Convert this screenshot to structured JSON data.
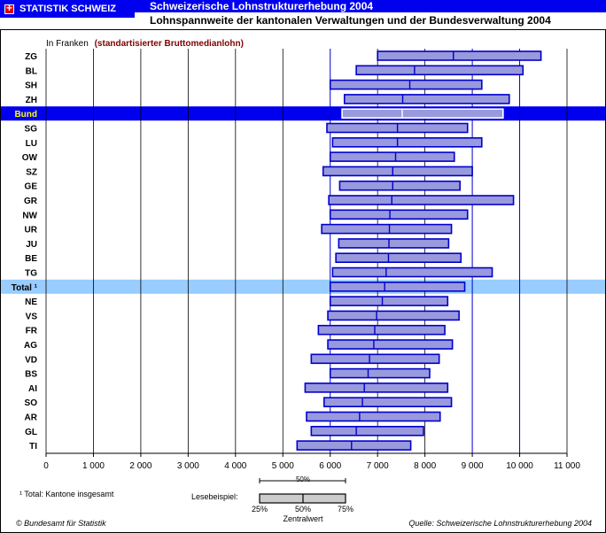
{
  "header": {
    "brand": "STATISTIK SCHWEIZ",
    "title": "Schweizerische Lohnstrukturerhebung 2004",
    "subtitle": "Lohnspannweite der kantonalen Verwaltungen und der Bundesverwaltung 2004"
  },
  "footer": {
    "footnote": "¹ Total: Kantone insgesamt",
    "copyright": "© Bundesamt für Statistik",
    "source": "Quelle: Schweizerische Lohnstrukturerhebung 2004"
  },
  "colors": {
    "header_blue": "#0000ee",
    "bund_band": "#0000ee",
    "bund_label": "#ffff00",
    "total_band": "#99ccff",
    "box_fill": "#9999dd",
    "box_stroke": "#0000cc",
    "axis_note": "#800000"
  },
  "chart_data": {
    "type": "box",
    "orientation": "horizontal",
    "title": "",
    "xlabel": "",
    "ylabel": "",
    "unit_note_prefix": "In Franken",
    "unit_note_detail": "(standartisierter Bruttomedianlohn)",
    "xlim": [
      0,
      11000
    ],
    "xticks": [
      0,
      1000,
      2000,
      3000,
      4000,
      5000,
      6000,
      7000,
      8000,
      9000,
      10000,
      11000
    ],
    "xtick_labels": [
      "0",
      "1 000",
      "2 000",
      "3 000",
      "4 000",
      "5 000",
      "6 000",
      "7 000",
      "8 000",
      "9 000",
      "10 000",
      "11 000"
    ],
    "grid": "vertical",
    "categories": [
      "ZG",
      "BL",
      "SH",
      "ZH",
      "Bund",
      "SG",
      "LU",
      "OW",
      "SZ",
      "GE",
      "GR",
      "NW",
      "UR",
      "JU",
      "BE",
      "TG",
      "Total ¹",
      "NE",
      "VS",
      "FR",
      "AG",
      "VD",
      "BS",
      "AI",
      "SO",
      "AR",
      "GL",
      "TI"
    ],
    "highlight": {
      "Bund": "bund",
      "Total ¹": "total"
    },
    "q1": [
      7000,
      6550,
      6000,
      6300,
      6250,
      5930,
      6050,
      6000,
      5850,
      6200,
      5970,
      6000,
      5820,
      6180,
      6120,
      6050,
      6000,
      6000,
      5950,
      5750,
      5950,
      5600,
      6000,
      5470,
      5870,
      5500,
      5600,
      5300
    ],
    "median": [
      8600,
      7780,
      7680,
      7530,
      7520,
      7420,
      7420,
      7380,
      7320,
      7320,
      7300,
      7260,
      7250,
      7240,
      7230,
      7180,
      7150,
      7100,
      6980,
      6940,
      6920,
      6830,
      6800,
      6720,
      6680,
      6620,
      6550,
      6450
    ],
    "q3": [
      10450,
      10070,
      9200,
      9780,
      9650,
      8900,
      9200,
      8620,
      9000,
      8740,
      9870,
      8900,
      8560,
      8500,
      8760,
      9420,
      8840,
      8480,
      8720,
      8420,
      8580,
      8300,
      8100,
      8480,
      8560,
      8320,
      7970,
      7700
    ],
    "legend": {
      "label": "Lesebeispiel:",
      "top_caption": "50%",
      "q1_label": "25%",
      "median_label": "50%",
      "q3_label": "75%",
      "bottom_caption": "Zentralwert"
    }
  }
}
